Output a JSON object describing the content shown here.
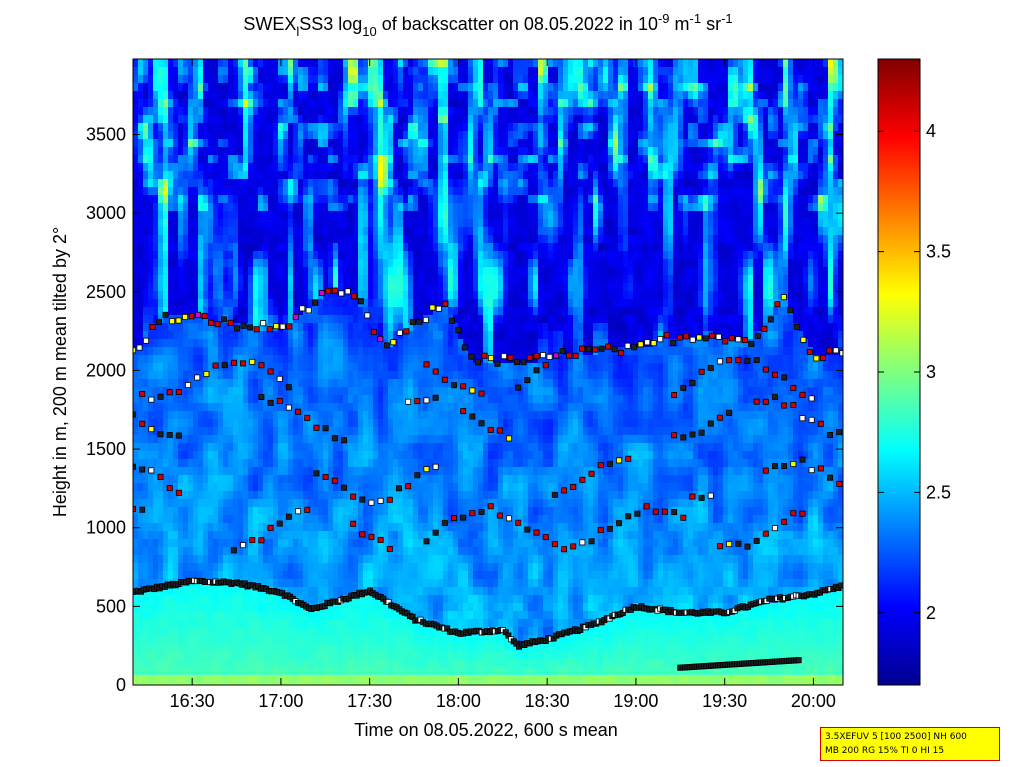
{
  "chart_data": {
    "type": "heatmap",
    "title": {
      "main": "SWEX",
      "sub1": "l",
      "mid": "SS3 log",
      "sub2": "10",
      "rest": " of backscatter on 08.05.2022 in 10",
      "sup1": "-9",
      "unit1": " m",
      "sup2": "-1",
      "unit2": " sr",
      "sup3": "-1"
    },
    "xlabel": "Time on 08.05.2022, 600 s mean",
    "ylabel": "Height in m, 200 m mean tilted by 2°",
    "xlim": [
      "16:10",
      "20:10"
    ],
    "ylim": [
      0,
      3980
    ],
    "xticks": [
      "16:30",
      "17:00",
      "17:30",
      "18:00",
      "18:30",
      "19:00",
      "19:30",
      "20:00"
    ],
    "yticks": [
      0,
      500,
      1000,
      1500,
      2000,
      2500,
      3000,
      3500
    ],
    "colorbar": {
      "min": 1.7,
      "max": 4.3,
      "ticks": [
        "2",
        "2.5",
        "3",
        "3.5",
        "4"
      ],
      "colormap": "jet"
    },
    "layers": {
      "surface_layer_top_m": [
        [
          "16:10",
          590
        ],
        [
          "16:30",
          660
        ],
        [
          "16:45",
          650
        ],
        [
          "17:00",
          590
        ],
        [
          "17:10",
          480
        ],
        [
          "17:30",
          600
        ],
        [
          "17:45",
          420
        ],
        [
          "18:00",
          330
        ],
        [
          "18:15",
          350
        ],
        [
          "18:20",
          250
        ],
        [
          "18:30",
          290
        ],
        [
          "18:45",
          380
        ],
        [
          "19:00",
          500
        ],
        [
          "19:15",
          460
        ],
        [
          "19:30",
          460
        ],
        [
          "19:45",
          540
        ],
        [
          "20:00",
          580
        ],
        [
          "20:10",
          630
        ]
      ],
      "upper_layer_m": [
        [
          "16:10",
          2120
        ],
        [
          "16:20",
          2330
        ],
        [
          "16:35",
          2330
        ],
        [
          "16:45",
          2280
        ],
        [
          "17:00",
          2270
        ],
        [
          "17:15",
          2480
        ],
        [
          "17:25",
          2480
        ],
        [
          "17:35",
          2140
        ],
        [
          "17:55",
          2430
        ],
        [
          "18:05",
          2070
        ],
        [
          "18:25",
          2060
        ],
        [
          "18:40",
          2120
        ],
        [
          "19:00",
          2130
        ],
        [
          "19:10",
          2200
        ],
        [
          "19:25",
          2230
        ],
        [
          "19:40",
          2180
        ],
        [
          "19:50",
          2460
        ],
        [
          "20:00",
          2100
        ],
        [
          "20:10",
          2130
        ]
      ]
    },
    "annotation": [
      "3.5XEFUV 5 [100 2500] NH 600",
      "MB 200 RG 15% TI 0 HI 15"
    ]
  }
}
